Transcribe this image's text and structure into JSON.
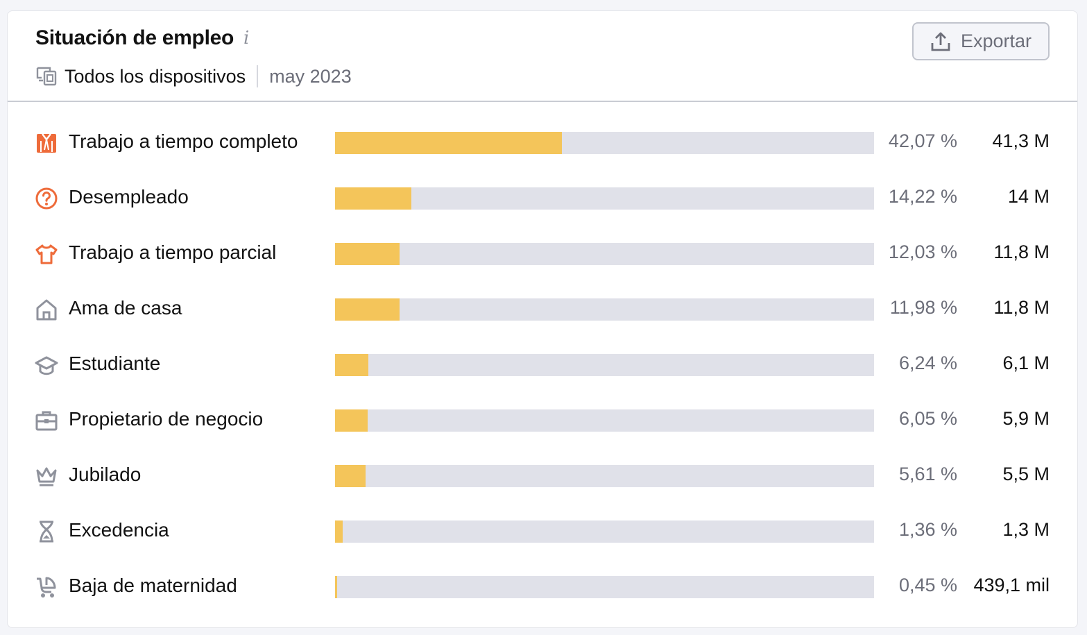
{
  "widget": {
    "title": "Situación de empleo",
    "info_icon": "info-icon",
    "device_label": "Todos los dispositivos",
    "date": "may 2023",
    "export_label": "Exportar"
  },
  "colors": {
    "bar_fill": "#f4c55a",
    "bar_track": "#e0e1e9",
    "icon_highlight": "#ee6b3a",
    "icon_muted": "#8f929c"
  },
  "rows": [
    {
      "label": "Trabajo a tiempo completo",
      "pct_text": "42,07 %",
      "value": "41,3 M",
      "pct": 42.07,
      "icon": "shirt-tie-icon",
      "highlight": true
    },
    {
      "label": "Desempleado",
      "pct_text": "14,22 %",
      "value": "14 M",
      "pct": 14.22,
      "icon": "question-circle-icon",
      "highlight": true
    },
    {
      "label": "Trabajo a tiempo parcial",
      "pct_text": "12,03 %",
      "value": "11,8 M",
      "pct": 12.03,
      "icon": "tshirt-icon",
      "highlight": true
    },
    {
      "label": "Ama de casa",
      "pct_text": "11,98 %",
      "value": "11,8 M",
      "pct": 11.98,
      "icon": "house-icon",
      "highlight": false
    },
    {
      "label": "Estudiante",
      "pct_text": "6,24 %",
      "value": "6,1 M",
      "pct": 6.24,
      "icon": "graduation-cap-icon",
      "highlight": false
    },
    {
      "label": "Propietario de negocio",
      "pct_text": "6,05 %",
      "value": "5,9 M",
      "pct": 6.05,
      "icon": "briefcase-icon",
      "highlight": false
    },
    {
      "label": "Jubilado",
      "pct_text": "5,61 %",
      "value": "5,5 M",
      "pct": 5.61,
      "icon": "crown-icon",
      "highlight": false
    },
    {
      "label": "Excedencia",
      "pct_text": "1,36 %",
      "value": "1,3 M",
      "pct": 1.36,
      "icon": "hourglass-icon",
      "highlight": false
    },
    {
      "label": "Baja de maternidad",
      "pct_text": "0,45 %",
      "value": "439,1 mil",
      "pct": 0.45,
      "icon": "baby-carriage-icon",
      "highlight": false
    }
  ]
}
